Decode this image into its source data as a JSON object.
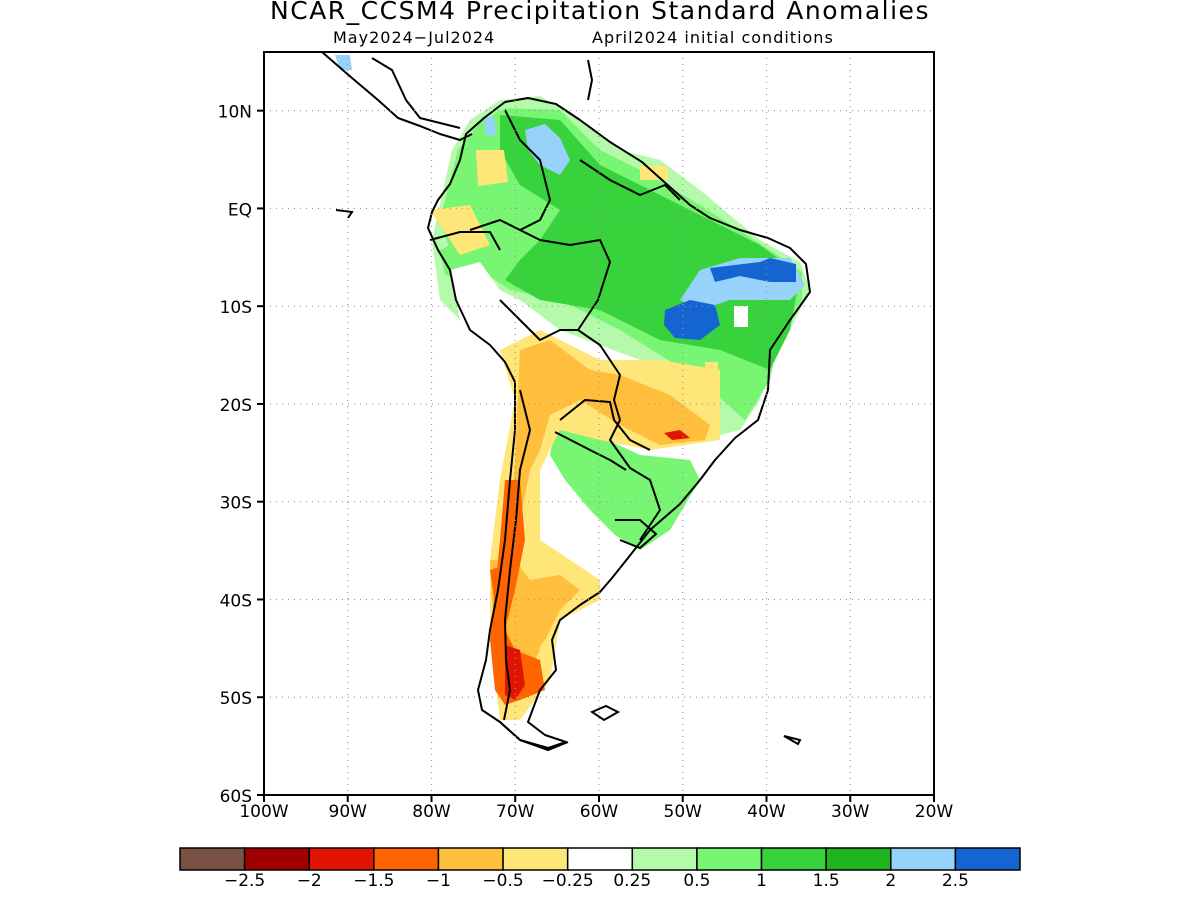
{
  "title": "NCAR_CCSM4 Precipitation Standard Anomalies",
  "subtitle_left": "May2024−Jul2024",
  "subtitle_right": "April2024 initial conditions",
  "map": {
    "lon_range": [
      -100,
      -20
    ],
    "lat_range": [
      -60,
      16
    ],
    "lat_ticks": [
      {
        "lat": 10,
        "label": "10N"
      },
      {
        "lat": 0,
        "label": "EQ"
      },
      {
        "lat": -10,
        "label": "10S"
      },
      {
        "lat": -20,
        "label": "20S"
      },
      {
        "lat": -30,
        "label": "30S"
      },
      {
        "lat": -40,
        "label": "40S"
      },
      {
        "lat": -50,
        "label": "50S"
      },
      {
        "lat": -60,
        "label": "60S"
      }
    ],
    "lon_ticks": [
      {
        "lon": -100,
        "label": "100W"
      },
      {
        "lon": -90,
        "label": "90W"
      },
      {
        "lon": -80,
        "label": "80W"
      },
      {
        "lon": -70,
        "label": "70W"
      },
      {
        "lon": -60,
        "label": "60W"
      },
      {
        "lon": -50,
        "label": "50W"
      },
      {
        "lon": -40,
        "label": "40W"
      },
      {
        "lon": -30,
        "label": "30W"
      },
      {
        "lon": -20,
        "label": "20W"
      }
    ],
    "grid": "dotted"
  },
  "colorbar": {
    "colors": [
      "#7b5144",
      "#a00000",
      "#e01400",
      "#ff6400",
      "#ffbe3c",
      "#ffe678",
      "#ffffff",
      "#b4faaa",
      "#78f573",
      "#37d23c",
      "#1eb41e",
      "#96d2fa",
      "#1464d2"
    ],
    "labels": [
      "−2.5",
      "−2",
      "−1.5",
      "−1",
      "−0.5",
      "−0.25",
      "0.25",
      "0.5",
      "1",
      "1.5",
      "2",
      "2.5"
    ]
  }
}
